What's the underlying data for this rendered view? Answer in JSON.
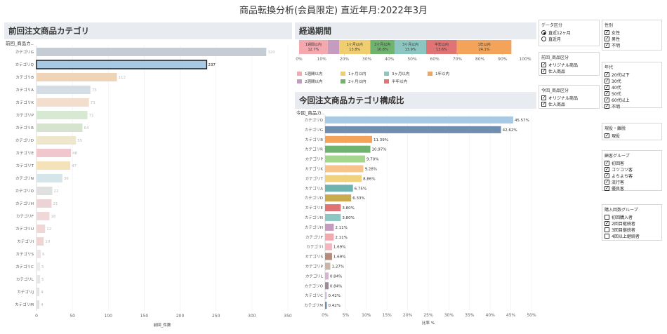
{
  "page_title": "商品転換分析(会員限定)  直近年月:2022年3月",
  "left_panel": {
    "title": "前回注文商品カテゴリ",
    "field_label": "前回_商品カ..",
    "x_axis_label": "前回_件数"
  },
  "elapsed_panel": {
    "title": "経過期間"
  },
  "right_panel": {
    "title": "今回注文商品カテゴリ構成比",
    "field_label": "今回_商品カ..",
    "x_axis_label": "比率 %"
  },
  "chart_data": [
    {
      "type": "bar",
      "title": "前回注文商品カテゴリ",
      "orientation": "horizontal",
      "categories": [
        "カテゴリG",
        "カテゴリQ",
        "カテゴリB",
        "カテゴリA",
        "カテゴリK",
        "カテゴリP",
        "カテゴリR",
        "カテゴリD",
        "カテゴリE",
        "カテゴリT",
        "カテゴリN",
        "カテゴリO",
        "カテゴリH",
        "カテゴリF",
        "カテゴリU",
        "カテゴリI",
        "カテゴリS",
        "カテゴリC",
        "カテゴリL",
        "カテゴリJ",
        "カテゴリM"
      ],
      "values": [
        320,
        237,
        112,
        75,
        73,
        71,
        64,
        55,
        48,
        47,
        36,
        22,
        21,
        18,
        12,
        10,
        6,
        5,
        5,
        4,
        4
      ],
      "colors": [
        "#c5ccd4",
        "#a8c9e4",
        "#f0d4b8",
        "#d5dde4",
        "#f3ddcc",
        "#d8e9d3",
        "#d5e3cf",
        "#eee7cb",
        "#f0c7cc",
        "#f5e2b9",
        "#d4e6ea",
        "#e0e0e0",
        "#ecd3d6",
        "#f0d8d8",
        "#f0d7d7",
        "#f0d5d5",
        "#ece4e8",
        "#ebebeb",
        "#e6e6e6",
        "#e3e3e3",
        "#e0e0e0"
      ],
      "highlighted": "カテゴリQ",
      "xlabel": "前回_件数",
      "xlim": [
        0,
        350
      ],
      "xticks": [
        0,
        50,
        100,
        150,
        200,
        250,
        300,
        350
      ]
    },
    {
      "type": "bar",
      "title": "経過期間",
      "orientation": "stacked-100",
      "segments": [
        {
          "name": "1週間以内",
          "value": 12.7,
          "label": "12.7%",
          "color": "#f4a9ae",
          "show_label": true
        },
        {
          "name": "2週間以内",
          "value": 5.0,
          "label": "",
          "color": "#c59cbf",
          "show_label": false
        },
        {
          "name": "1ヶ月以内",
          "value": 13.8,
          "label": "13.8%",
          "color": "#f0cd6e",
          "show_label": true
        },
        {
          "name": "2ヶ月以内",
          "value": 10.8,
          "label": "10.8%",
          "color": "#6fb36f",
          "show_label": true
        },
        {
          "name": "3ヶ月以内",
          "value": 13.9,
          "label": "13.9%",
          "color": "#8cc6c0",
          "show_label": true
        },
        {
          "name": "半年以内",
          "value": 13.6,
          "label": "13.6%",
          "color": "#e07474",
          "show_label": true
        },
        {
          "name": "1年以内",
          "value": 24.1,
          "label": "24.1%",
          "color": "#f3a45a",
          "show_label": true
        }
      ],
      "xticks": [
        "0%",
        "10%",
        "20%",
        "30%",
        "40%",
        "50%",
        "60%",
        "70%",
        "80%",
        "90%",
        "100%"
      ],
      "legend": [
        {
          "name": "1週間以内",
          "color": "#f4a9ae"
        },
        {
          "name": "1ヶ月以内",
          "color": "#f0cd6e"
        },
        {
          "name": "3ヶ月以内",
          "color": "#8cc6c0"
        },
        {
          "name": "1年以内",
          "color": "#f3a45a"
        },
        {
          "name": "2週間以内",
          "color": "#c59cbf"
        },
        {
          "name": "2ヶ月以内",
          "color": "#6fb36f"
        },
        {
          "name": "半年以内",
          "color": "#e07474"
        }
      ]
    },
    {
      "type": "bar",
      "title": "今回注文商品カテゴリ構成比",
      "orientation": "horizontal",
      "categories": [
        "カテゴリQ",
        "カテゴリG",
        "カテゴリB",
        "カテゴリR",
        "カテゴリP",
        "カテゴリK",
        "カテゴリT",
        "カテゴリA",
        "カテゴリD",
        "カテゴリE",
        "カテゴリN",
        "カテゴリH",
        "カテゴリF",
        "カテゴリI",
        "カテゴリS",
        "カテゴリP",
        "カテゴリL",
        "カテゴリO",
        "カテゴリC",
        "カテゴリM"
      ],
      "values": [
        45.57,
        42.62,
        11.39,
        10.97,
        9.7,
        9.28,
        8.86,
        6.75,
        6.33,
        3.8,
        3.8,
        2.11,
        2.11,
        1.69,
        1.69,
        1.27,
        0.84,
        0.84,
        0.42,
        0.42
      ],
      "labels": [
        "45.57%",
        "42.62%",
        "11.39%",
        "10.97%",
        "9.70%",
        "9.28%",
        "8.86%",
        "6.75%",
        "6.33%",
        "3.80%",
        "3.80%",
        "2.11%",
        "2.11%",
        "1.69%",
        "1.69%",
        "1.27%",
        "0.84%",
        "0.84%",
        "0.42%",
        "0.42%"
      ],
      "colors": [
        "#a8c9e4",
        "#6f8eaf",
        "#f3a45a",
        "#6fb36f",
        "#a5d68e",
        "#f7c48d",
        "#f0d27e",
        "#6fb3b0",
        "#c9aa4e",
        "#e07474",
        "#8ec6c4",
        "#c59cbf",
        "#f4a9ae",
        "#f4b7c0",
        "#b58c7c",
        "#c9b6a6",
        "#d8b2cf",
        "#9c8a96",
        "#d2c0d8",
        "#6f8eaf"
      ],
      "xlabel": "比率 %",
      "xlim": [
        0,
        50
      ],
      "xticks": [
        "0%",
        "5%",
        "10%",
        "15%",
        "20%",
        "25%",
        "30%",
        "35%",
        "40%",
        "45%",
        "50%"
      ]
    }
  ],
  "filters": {
    "data_type": {
      "title": "データ区分",
      "options": [
        {
          "label": "直近12ヶ月",
          "selected": true
        },
        {
          "label": "直近月",
          "selected": false
        }
      ]
    },
    "prev_product": {
      "title": "前回_商品区分",
      "items": [
        {
          "label": "オリジナル商品",
          "checked": true
        },
        {
          "label": "仕入商品",
          "checked": true
        }
      ]
    },
    "curr_product": {
      "title": "今回_商品区分",
      "items": [
        {
          "label": "オリジナル商品",
          "checked": true
        },
        {
          "label": "仕入商品",
          "checked": true
        }
      ]
    },
    "gender": {
      "title": "性別",
      "items": [
        {
          "label": "女性",
          "checked": true
        },
        {
          "label": "男性",
          "checked": true
        },
        {
          "label": "不明",
          "checked": true
        }
      ]
    },
    "age": {
      "title": "年代",
      "items": [
        {
          "label": "20代以下",
          "checked": true
        },
        {
          "label": "30代",
          "checked": true
        },
        {
          "label": "40代",
          "checked": true
        },
        {
          "label": "50代",
          "checked": true
        },
        {
          "label": "60代以上",
          "checked": true
        },
        {
          "label": "不明",
          "checked": true
        }
      ]
    },
    "status": {
      "title": "現役・離脱",
      "items": [
        {
          "label": "現役",
          "checked": true
        }
      ]
    },
    "customer_group": {
      "title": "顧客グループ",
      "items": [
        {
          "label": "初回客",
          "checked": true
        },
        {
          "label": "コツコツ客",
          "checked": true
        },
        {
          "label": "よちよち客",
          "checked": true
        },
        {
          "label": "流行客",
          "checked": true
        },
        {
          "label": "優良客",
          "checked": true
        }
      ]
    },
    "purchase_group": {
      "title": "購入回数グループ",
      "items": [
        {
          "label": "初回購入者",
          "checked": false
        },
        {
          "label": "2回目継続者",
          "checked": true
        },
        {
          "label": "3回目継続者",
          "checked": false
        },
        {
          "label": "4回以上継続者",
          "checked": false
        }
      ]
    }
  }
}
